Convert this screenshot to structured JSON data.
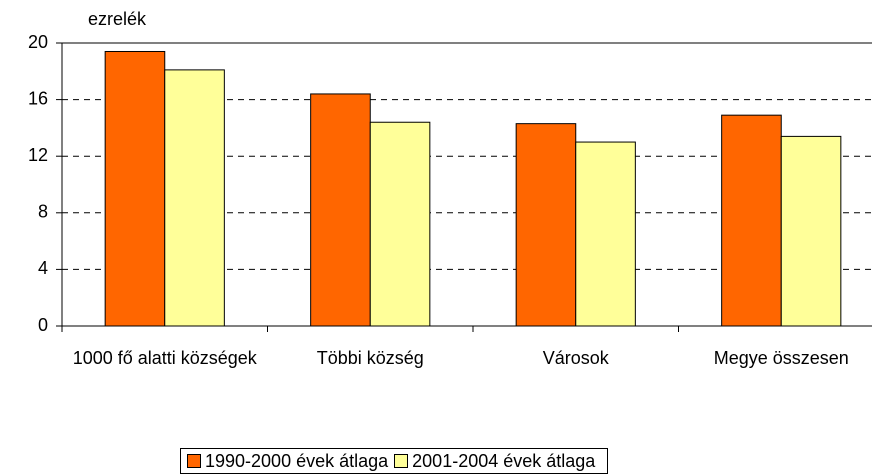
{
  "chart_data": {
    "type": "bar",
    "y_label": "ezrelék",
    "categories": [
      "1000 fő alatti községek",
      "Többi község",
      "Városok",
      "Megye összesen"
    ],
    "series": [
      {
        "name": "1990-2000 évek átlaga",
        "color": "#ff6600",
        "values": [
          19.4,
          16.4,
          14.3,
          14.9
        ]
      },
      {
        "name": "2001-2004 évek átlaga",
        "color": "#ffff99",
        "values": [
          18.1,
          14.4,
          13.0,
          13.4
        ]
      }
    ],
    "ylim": [
      0,
      20
    ],
    "yticks": [
      0,
      4,
      8,
      12,
      16,
      20
    ],
    "grid": true,
    "legend": "bottom"
  }
}
